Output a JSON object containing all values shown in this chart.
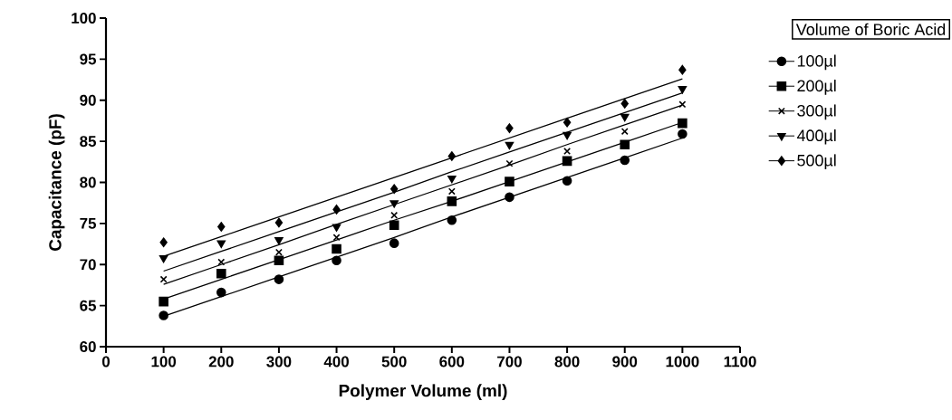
{
  "chart_data": {
    "type": "scatter",
    "xlabel": "Polymer Volume (ml)",
    "ylabel": "Capacitance (pF)",
    "legend_title": "Volume of Boric Acid",
    "legend": "top right",
    "x": [
      100,
      200,
      300,
      400,
      500,
      600,
      700,
      800,
      900,
      1000
    ],
    "xlim": [
      0,
      1100
    ],
    "xticks": [
      0,
      100,
      200,
      300,
      400,
      500,
      600,
      700,
      800,
      900,
      1000,
      1100
    ],
    "ylim": [
      60,
      100
    ],
    "yticks": [
      60,
      65,
      70,
      75,
      80,
      85,
      90,
      95,
      100
    ],
    "series": [
      {
        "name": "100µl",
        "color": "#000000",
        "marker": "circle",
        "values": [
          63.8,
          66.6,
          68.2,
          70.5,
          72.6,
          75.4,
          78.2,
          80.2,
          82.7,
          85.9
        ]
      },
      {
        "name": "200µl",
        "color": "#000000",
        "marker": "square",
        "values": [
          65.5,
          68.9,
          70.5,
          71.9,
          74.8,
          77.7,
          80.1,
          82.6,
          84.6,
          87.2
        ]
      },
      {
        "name": "300µl",
        "color": "#000000",
        "marker": "cross",
        "values": [
          68.2,
          70.3,
          71.5,
          73.3,
          76.0,
          78.9,
          82.3,
          83.8,
          86.2,
          89.5
        ]
      },
      {
        "name": "400µl",
        "color": "#000000",
        "marker": "triangle",
        "values": [
          70.8,
          72.6,
          73.0,
          74.6,
          77.5,
          80.5,
          84.6,
          85.8,
          88.0,
          91.4
        ]
      },
      {
        "name": "500µl",
        "color": "#000000",
        "marker": "diamond",
        "values": [
          72.7,
          74.6,
          75.1,
          76.7,
          79.2,
          83.2,
          86.6,
          87.3,
          89.6,
          93.7
        ]
      },
      {
        "type": "line",
        "color": "#000000",
        "marker": "none",
        "values": [
          63.7,
          66.1,
          68.5,
          70.9,
          73.3,
          75.8,
          78.2,
          80.6,
          83.0,
          85.4
        ]
      },
      {
        "type": "line",
        "color": "#000000",
        "marker": "none",
        "values": [
          65.8,
          68.2,
          70.6,
          73.0,
          75.4,
          77.7,
          80.1,
          82.5,
          84.9,
          87.3
        ]
      },
      {
        "type": "line",
        "color": "#000000",
        "marker": "none",
        "values": [
          67.6,
          70.0,
          72.4,
          74.9,
          77.3,
          79.7,
          82.1,
          84.6,
          87.0,
          89.4
        ]
      },
      {
        "type": "line",
        "color": "#000000",
        "marker": "none",
        "values": [
          69.2,
          71.6,
          74.0,
          76.4,
          78.8,
          81.3,
          83.7,
          86.1,
          88.5,
          90.9
        ]
      },
      {
        "type": "line",
        "color": "#000000",
        "marker": "none",
        "values": [
          71.0,
          73.4,
          75.8,
          78.2,
          80.6,
          83.0,
          85.4,
          87.8,
          90.2,
          92.6
        ]
      }
    ]
  }
}
